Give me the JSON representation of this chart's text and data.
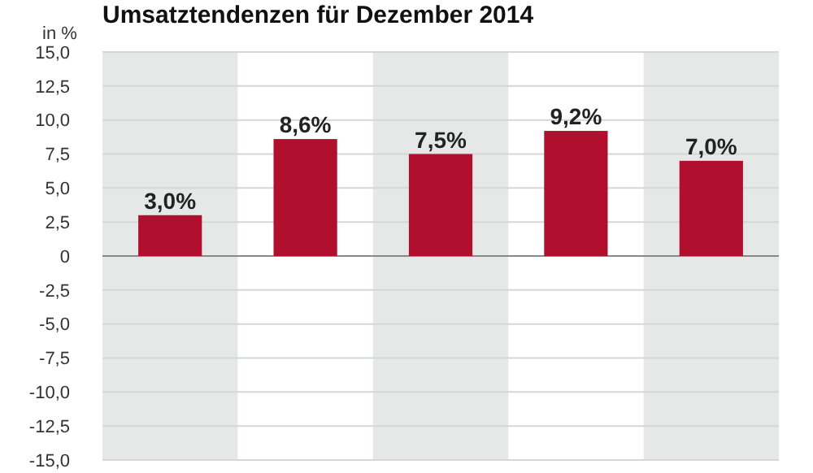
{
  "chart_data": {
    "type": "bar",
    "title": "Umsatztendenzen für Dezember 2014",
    "ylabel": "in %",
    "categories": [
      null,
      null,
      null,
      null,
      null
    ],
    "series": [
      {
        "color": "#b0102e",
        "values": [
          3.0,
          8.6,
          7.5,
          9.2,
          7.0
        ],
        "value_labels": [
          "3,0%",
          "8,6%",
          "7,5%",
          "9,2%",
          "7,0%"
        ]
      }
    ],
    "ylim": [
      -15,
      15
    ],
    "yticks": [
      {
        "value": -15,
        "label": "-15,0"
      },
      {
        "value": -12.5,
        "label": "-12,5"
      },
      {
        "value": -10,
        "label": "-10,0"
      },
      {
        "value": -7.5,
        "label": "-7,5"
      },
      {
        "value": -5,
        "label": "-5,0"
      },
      {
        "value": -2.5,
        "label": "-2,5"
      },
      {
        "value": 0,
        "label": "0"
      },
      {
        "value": 2.5,
        "label": "2,5"
      },
      {
        "value": 5,
        "label": "5,0"
      },
      {
        "value": 7.5,
        "label": "7,5"
      },
      {
        "value": 10,
        "label": "10,0"
      },
      {
        "value": 12.5,
        "label": "12,5"
      },
      {
        "value": 15,
        "label": "15,0"
      }
    ],
    "grid": "y"
  }
}
